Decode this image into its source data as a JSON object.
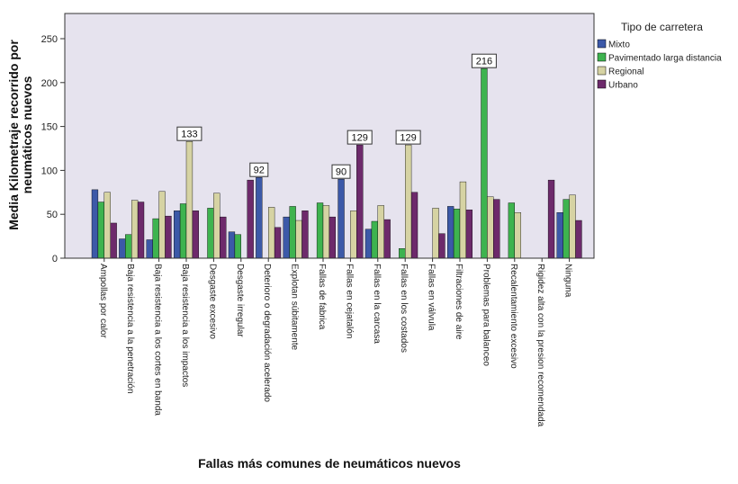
{
  "chart_data": {
    "type": "bar",
    "title": "",
    "xlabel": "Fallas más comunes de neumáticos nuevos",
    "ylabel_lines": [
      "Media Kilometraje recorrido por",
      "neumáticos nuevos"
    ],
    "ylim": [
      0,
      265
    ],
    "yticks": [
      0,
      50,
      100,
      150,
      200,
      250
    ],
    "grid": false,
    "legend": {
      "title": "Tipo de carretera",
      "placement": "right"
    },
    "categories": [
      "Ampollas por calor",
      "Baja resistencia a la penetración",
      "Baja resistencia a los cortes en banda",
      "Baja resistencia a los impactos",
      "Desgaste excesivo",
      "Desgaste irregular",
      "Deterioro o degradación acelerado",
      "Explotan súbitamente",
      "Fallas de fabrica",
      "Fallas en cejatalón",
      "Fallas en la carcasa",
      "Fallas en los costados",
      "Fallas en válvula",
      "Filtraciones de aire",
      "Problemas para balanceo",
      "Recalentamiento excesivo",
      "Rigidez alta con la presion recomendada",
      "Ninguna"
    ],
    "series": [
      {
        "name": "Mixto",
        "color": "#3c59a8",
        "values": [
          78,
          22,
          21,
          54,
          null,
          30,
          92,
          47,
          null,
          90,
          33,
          null,
          null,
          59,
          null,
          null,
          null,
          52
        ]
      },
      {
        "name": "Pavimentado larga distancia",
        "color": "#3eb34f",
        "values": [
          64,
          27,
          45,
          62,
          57,
          27,
          null,
          59,
          63,
          null,
          42,
          11,
          null,
          56,
          216,
          63,
          null,
          67
        ]
      },
      {
        "name": "Regional",
        "color": "#d6d3a3",
        "values": [
          75,
          66,
          76,
          133,
          74,
          null,
          58,
          43,
          60,
          54,
          60,
          129,
          57,
          87,
          70,
          52,
          null,
          72
        ]
      },
      {
        "name": "Urbano",
        "color": "#6d2a6b",
        "values": [
          40,
          64,
          48,
          54,
          47,
          89,
          35,
          54,
          47,
          129,
          44,
          75,
          28,
          55,
          67,
          null,
          89,
          43
        ]
      }
    ],
    "data_labels": [
      {
        "category": "Baja resistencia a los impactos",
        "series": "Regional",
        "text": "133"
      },
      {
        "category": "Deterioro o degradación acelerado",
        "series": "Mixto",
        "text": "92"
      },
      {
        "category": "Fallas en cejatalón",
        "series": "Mixto",
        "text": "90"
      },
      {
        "category": "Fallas en cejatalón",
        "series": "Urbano",
        "text": "129"
      },
      {
        "category": "Fallas en los costados",
        "series": "Regional",
        "text": "129"
      },
      {
        "category": "Problemas para balanceo",
        "series": "Pavimentado larga distancia",
        "text": "216"
      }
    ],
    "colors": {
      "plot_background": "#e6e3ee",
      "bar_outline": "#000000"
    }
  }
}
